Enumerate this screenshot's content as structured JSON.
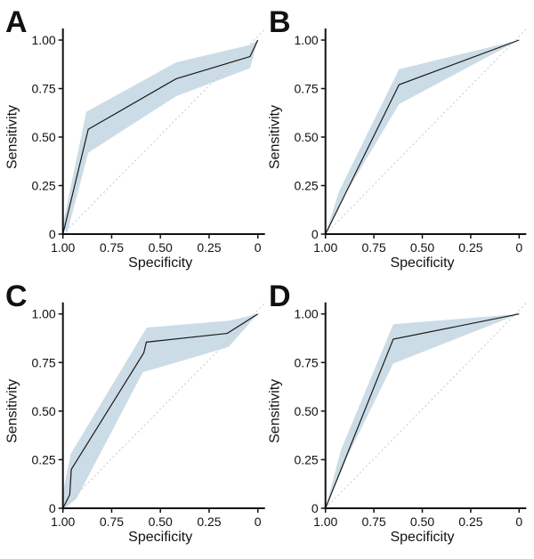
{
  "chart_data": [
    {
      "type": "line",
      "panel_label": "A",
      "xlabel": "Specificity",
      "ylabel": "Sensitivity",
      "xlim": [
        1.0,
        0
      ],
      "ylim": [
        0,
        1.0
      ],
      "x_reversed": true,
      "xticks": [
        "1.00",
        "0.75",
        "0.50",
        "0.25",
        "0"
      ],
      "yticks": [
        "0",
        "0.25",
        "0.50",
        "0.75",
        "1.00"
      ],
      "grid": false,
      "reference_line": "dotted diagonal",
      "curve": [
        [
          1.0,
          0
        ],
        [
          0.87,
          0.54
        ],
        [
          0.42,
          0.8
        ],
        [
          0.04,
          0.915
        ],
        [
          0,
          1.0
        ]
      ],
      "ci_upper": [
        [
          1.0,
          0.05
        ],
        [
          0.88,
          0.63
        ],
        [
          0.42,
          0.885
        ],
        [
          0.04,
          0.975
        ],
        [
          0,
          1.0
        ]
      ],
      "ci_lower": [
        [
          0.98,
          0
        ],
        [
          0.87,
          0.42
        ],
        [
          0.42,
          0.71
        ],
        [
          0.04,
          0.855
        ],
        [
          0,
          1.0
        ]
      ]
    },
    {
      "type": "line",
      "panel_label": "B",
      "xlabel": "Specificity",
      "ylabel": "Sensitivity",
      "xlim": [
        1.0,
        0
      ],
      "ylim": [
        0,
        1.0
      ],
      "x_reversed": true,
      "xticks": [
        "1.00",
        "0.75",
        "0.50",
        "0.25",
        "0"
      ],
      "yticks": [
        "0",
        "0.25",
        "0.50",
        "0.75",
        "1.00"
      ],
      "grid": false,
      "reference_line": "dotted diagonal",
      "curve": [
        [
          1.0,
          0
        ],
        [
          0.62,
          0.77
        ],
        [
          0,
          1.0
        ]
      ],
      "ci_upper": [
        [
          1.0,
          0
        ],
        [
          0.93,
          0.22
        ],
        [
          0.62,
          0.85
        ],
        [
          0,
          1.0
        ]
      ],
      "ci_lower": [
        [
          1.0,
          0
        ],
        [
          0.9,
          0.2
        ],
        [
          0.62,
          0.67
        ],
        [
          0,
          1.0
        ]
      ]
    },
    {
      "type": "line",
      "panel_label": "C",
      "xlabel": "Specificity",
      "ylabel": "Sensitivity",
      "xlim": [
        1.0,
        0
      ],
      "ylim": [
        0,
        1.0
      ],
      "x_reversed": true,
      "xticks": [
        "1.00",
        "0.75",
        "0.50",
        "0.25",
        "0"
      ],
      "yticks": [
        "0",
        "0.25",
        "0.50",
        "0.75",
        "1.00"
      ],
      "grid": false,
      "reference_line": "dotted diagonal",
      "curve": [
        [
          1.0,
          0
        ],
        [
          0.965,
          0.07
        ],
        [
          0.957,
          0.2
        ],
        [
          0.585,
          0.8
        ],
        [
          0.572,
          0.855
        ],
        [
          0.157,
          0.9
        ],
        [
          0,
          1.0
        ]
      ],
      "ci_upper": [
        [
          1.0,
          0.08
        ],
        [
          0.96,
          0.28
        ],
        [
          0.57,
          0.93
        ],
        [
          0.15,
          0.965
        ],
        [
          0,
          1.0
        ]
      ],
      "ci_lower": [
        [
          0.99,
          0
        ],
        [
          0.93,
          0.05
        ],
        [
          0.59,
          0.7
        ],
        [
          0.15,
          0.83
        ],
        [
          0,
          1.0
        ]
      ]
    },
    {
      "type": "line",
      "panel_label": "D",
      "xlabel": "Specificity",
      "ylabel": "Sensitivity",
      "xlim": [
        1.0,
        0
      ],
      "ylim": [
        0,
        1.0
      ],
      "x_reversed": true,
      "xticks": [
        "1.00",
        "0.75",
        "0.50",
        "0.25",
        "0"
      ],
      "yticks": [
        "0",
        "0.25",
        "0.50",
        "0.75",
        "1.00"
      ],
      "grid": false,
      "reference_line": "dotted diagonal",
      "curve": [
        [
          1.0,
          0
        ],
        [
          0.65,
          0.87
        ],
        [
          0,
          1.0
        ]
      ],
      "ci_upper": [
        [
          1.0,
          0
        ],
        [
          0.92,
          0.3
        ],
        [
          0.65,
          0.947
        ],
        [
          0,
          1.0
        ]
      ],
      "ci_lower": [
        [
          1.0,
          0
        ],
        [
          0.88,
          0.28
        ],
        [
          0.65,
          0.745
        ],
        [
          0,
          1.0
        ]
      ]
    }
  ],
  "colors": {
    "curve": "#1a1a1a",
    "ci_band": "#ccdce6",
    "reference_line": "#c8c8c8",
    "axis": "#111111"
  }
}
